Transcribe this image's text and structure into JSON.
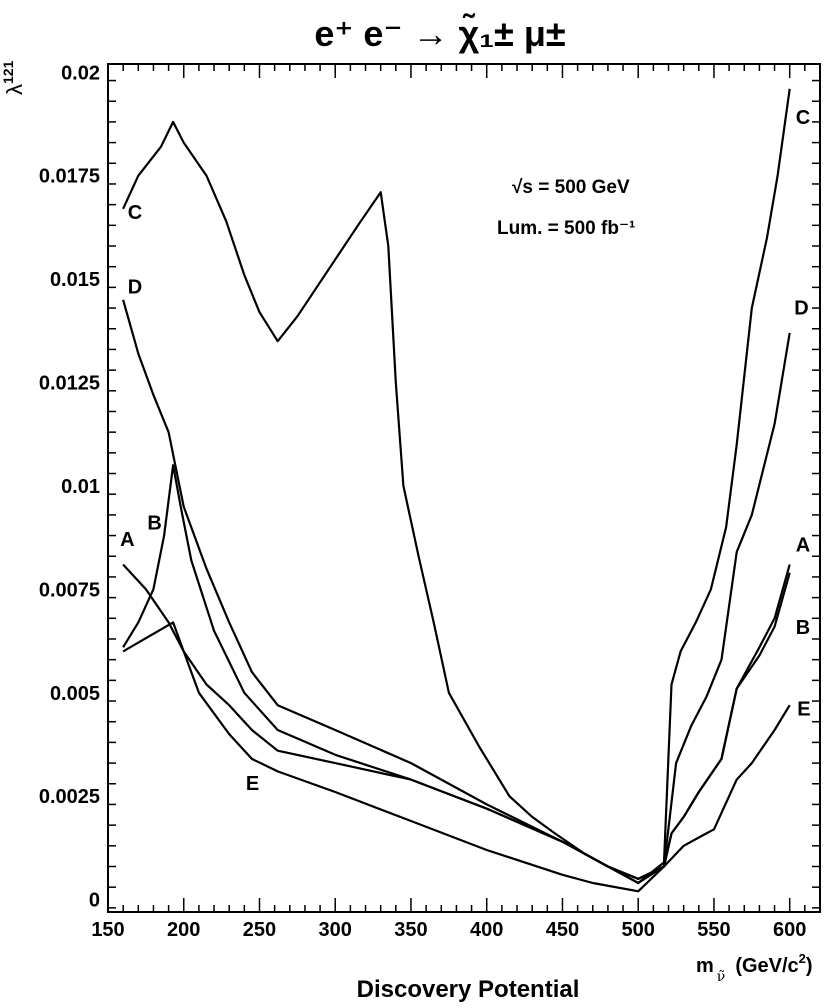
{
  "title": "e⁺ e⁻ → χ̃₁± μ±",
  "footer": "Discovery Potential",
  "chart_data": {
    "type": "line",
    "title": "e⁺ e⁻ → χ̃₁± μ±",
    "xlabel": "m ν̃ (GeV/c²)",
    "ylabel": "λ 121",
    "xlim": [
      150,
      620
    ],
    "ylim": [
      -0.0003,
      0.0202
    ],
    "xticks": [
      "150",
      "200",
      "250",
      "300",
      "350",
      "400",
      "450",
      "500",
      "550",
      "600"
    ],
    "yticks": [
      "0",
      "0.0025",
      "0.005",
      "0.0075",
      "0.01",
      "0.0125",
      "0.015",
      "0.0175",
      "0.02"
    ],
    "grid": false,
    "annotations": [
      "√s = 500 GeV",
      "Lum. = 500 fb⁻¹"
    ],
    "series": [
      {
        "name": "C",
        "x": [
          160,
          170,
          185,
          193,
          200,
          215,
          228,
          240,
          250,
          262,
          275,
          295,
          315,
          330,
          335,
          340,
          345,
          355,
          365,
          375,
          395,
          415,
          430,
          445,
          465,
          500,
          517,
          522,
          528,
          538,
          548,
          558,
          565,
          575,
          585,
          592,
          600
        ],
        "y": [
          0.0167,
          0.0175,
          0.0182,
          0.0188,
          0.0183,
          0.0175,
          0.0164,
          0.0151,
          0.0142,
          0.0135,
          0.0141,
          0.0152,
          0.0163,
          0.0171,
          0.0158,
          0.0125,
          0.01,
          0.0083,
          0.0067,
          0.005,
          0.0037,
          0.0025,
          0.002,
          0.0016,
          0.0011,
          0.0004,
          0.0009,
          0.0052,
          0.006,
          0.0067,
          0.0075,
          0.009,
          0.011,
          0.0143,
          0.016,
          0.0175,
          0.0196
        ]
      },
      {
        "name": "D",
        "x": [
          160,
          170,
          180,
          190,
          200,
          215,
          230,
          245,
          262,
          300,
          350,
          400,
          450,
          500,
          517,
          525,
          535,
          545,
          555,
          565,
          575,
          590,
          600
        ],
        "y": [
          0.0145,
          0.0132,
          0.0122,
          0.0113,
          0.0095,
          0.008,
          0.0067,
          0.0055,
          0.0047,
          0.0041,
          0.0033,
          0.0023,
          0.0014,
          0.0004,
          0.0008,
          0.0033,
          0.0042,
          0.0049,
          0.0058,
          0.0084,
          0.0093,
          0.0115,
          0.0137
        ]
      },
      {
        "name": "A",
        "x": [
          160,
          175,
          190,
          200,
          215,
          230,
          245,
          262,
          300,
          350,
          400,
          450,
          480,
          500,
          517,
          522,
          530,
          540,
          555,
          565,
          580,
          590,
          600
        ],
        "y": [
          0.0081,
          0.0075,
          0.0067,
          0.006,
          0.0052,
          0.0047,
          0.0041,
          0.0036,
          0.0033,
          0.0029,
          0.0022,
          0.0014,
          0.0008,
          0.0005,
          0.0008,
          0.0016,
          0.002,
          0.0026,
          0.0034,
          0.0051,
          0.0061,
          0.0068,
          0.0081
        ]
      },
      {
        "name": "B",
        "x": [
          160,
          170,
          180,
          187,
          193,
          198,
          205,
          220,
          240,
          262,
          300,
          350,
          400,
          450,
          480,
          500,
          517,
          522,
          530,
          540,
          555,
          565,
          580,
          590,
          600
        ],
        "y": [
          0.0061,
          0.0067,
          0.0075,
          0.0088,
          0.0105,
          0.0095,
          0.0082,
          0.0065,
          0.005,
          0.0041,
          0.0035,
          0.0029,
          0.0022,
          0.0014,
          0.0008,
          0.0005,
          0.0008,
          0.0016,
          0.002,
          0.0026,
          0.0034,
          0.0051,
          0.0059,
          0.0066,
          0.0079
        ]
      },
      {
        "name": "E",
        "x": [
          160,
          193,
          200,
          210,
          230,
          245,
          262,
          300,
          350,
          400,
          450,
          470,
          500,
          517,
          530,
          540,
          550,
          565,
          575,
          590,
          600
        ],
        "y": [
          0.006,
          0.0067,
          0.006,
          0.005,
          0.004,
          0.0034,
          0.0031,
          0.0026,
          0.0019,
          0.0012,
          0.0006,
          0.0004,
          0.0002,
          0.0008,
          0.0013,
          0.0015,
          0.0017,
          0.0029,
          0.0033,
          0.0041,
          0.0047
        ]
      }
    ]
  }
}
